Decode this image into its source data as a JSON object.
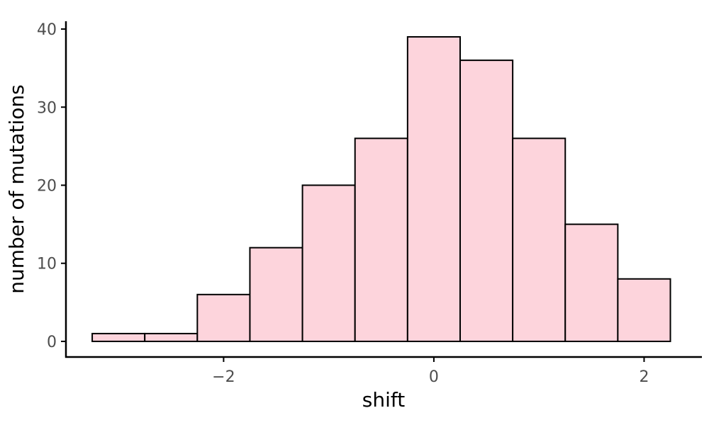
{
  "chart_data": {
    "type": "bar",
    "subtype": "histogram",
    "title": "",
    "xlabel": "shift",
    "ylabel": "number of mutations",
    "bin_width": 0.5,
    "bins": [
      {
        "x_start": -3.25,
        "x_end": -2.75,
        "count": 1
      },
      {
        "x_start": -2.75,
        "x_end": -2.25,
        "count": 1
      },
      {
        "x_start": -2.25,
        "x_end": -1.75,
        "count": 6
      },
      {
        "x_start": -1.75,
        "x_end": -1.25,
        "count": 12
      },
      {
        "x_start": -1.25,
        "x_end": -0.75,
        "count": 20
      },
      {
        "x_start": -0.75,
        "x_end": -0.25,
        "count": 26
      },
      {
        "x_start": -0.25,
        "x_end": 0.25,
        "count": 39
      },
      {
        "x_start": 0.25,
        "x_end": 0.75,
        "count": 36
      },
      {
        "x_start": 0.75,
        "x_end": 1.25,
        "count": 26
      },
      {
        "x_start": 1.25,
        "x_end": 1.75,
        "count": 15
      },
      {
        "x_start": 1.75,
        "x_end": 2.25,
        "count": 8
      }
    ],
    "xlim": [
      -3.5,
      2.55
    ],
    "ylim": [
      -2,
      41
    ],
    "xticks": [
      {
        "value": -2,
        "label": "−2"
      },
      {
        "value": 0,
        "label": "0"
      },
      {
        "value": 2,
        "label": "2"
      }
    ],
    "yticks": [
      {
        "value": 0,
        "label": "0"
      },
      {
        "value": 10,
        "label": "10"
      },
      {
        "value": 20,
        "label": "20"
      },
      {
        "value": 30,
        "label": "30"
      },
      {
        "value": 40,
        "label": "40"
      }
    ],
    "grid": false,
    "legend": "none",
    "colors": {
      "bar_fill": "#FDD4DC",
      "bar_stroke": "#000000",
      "axis": "#000000",
      "tick_label": "#4d4d4d"
    }
  }
}
